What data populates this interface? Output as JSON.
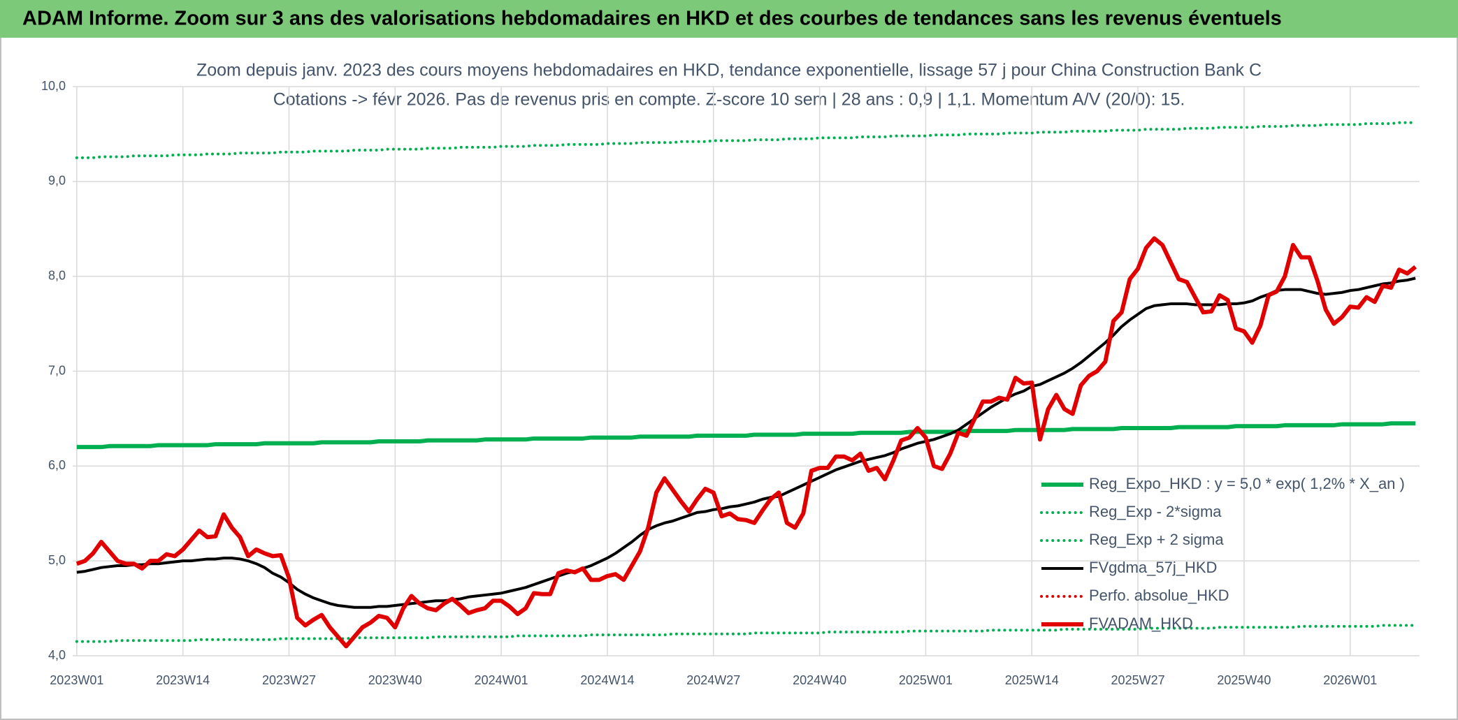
{
  "chart_data": {
    "type": "line",
    "title": "ADAM Informe. Zoom sur 3 ans des valorisations hebdomadaires en HKD et des courbes de tendances sans les revenus éventuels",
    "subtitle": [
      "Zoom depuis janv. 2023 des cours moyens hebdomadaires en HKD, tendance exponentielle, lissage 57 j pour China Construction Bank C",
      "Cotations -> févr 2026. Pas de revenus pris en compte. Z-score 10 sem | 28 ans : 0,9 | 1,1. Momentum A/V (20/0): 15."
    ],
    "categories": [
      "2023W01",
      null,
      null,
      null,
      null,
      null,
      null,
      null,
      null,
      null,
      null,
      null,
      null,
      "2023W14",
      null,
      null,
      null,
      null,
      null,
      null,
      null,
      null,
      null,
      null,
      null,
      null,
      "2023W27",
      null,
      null,
      null,
      null,
      null,
      null,
      null,
      null,
      null,
      null,
      null,
      null,
      "2023W40",
      null,
      null,
      null,
      null,
      null,
      null,
      null,
      null,
      null,
      null,
      null,
      null,
      "2024W01",
      null,
      null,
      null,
      null,
      null,
      null,
      null,
      null,
      null,
      null,
      null,
      null,
      "2024W14",
      null,
      null,
      null,
      null,
      null,
      null,
      null,
      null,
      null,
      null,
      null,
      null,
      "2024W27",
      null,
      null,
      null,
      null,
      null,
      null,
      null,
      null,
      null,
      null,
      null,
      null,
      "2024W40",
      null,
      null,
      null,
      null,
      null,
      null,
      null,
      null,
      null,
      null,
      null,
      null,
      "2025W01",
      null,
      null,
      null,
      null,
      null,
      null,
      null,
      null,
      null,
      null,
      null,
      null,
      "2025W14",
      null,
      null,
      null,
      null,
      null,
      null,
      null,
      null,
      null,
      null,
      null,
      null,
      "2025W27",
      null,
      null,
      null,
      null,
      null,
      null,
      null,
      null,
      null,
      null,
      null,
      null,
      "2025W40",
      null,
      null,
      null,
      null,
      null,
      null,
      null,
      null,
      null,
      null,
      null,
      null,
      "2026W01",
      null,
      null,
      null,
      null,
      null,
      null,
      null,
      null
    ],
    "ylim": [
      4,
      10
    ],
    "yticks": [
      {
        "value": 4,
        "label": "4,0"
      },
      {
        "value": 5,
        "label": "5,0"
      },
      {
        "value": 6,
        "label": "6,0"
      },
      {
        "value": 7,
        "label": "7,0"
      },
      {
        "value": 8,
        "label": "8,0"
      },
      {
        "value": 9,
        "label": "9,0"
      },
      {
        "value": 10,
        "label": "10,0"
      }
    ],
    "grid": true,
    "legend": "lower right",
    "series": [
      {
        "name": "Reg_Expo_HKD : y = 5,0 * exp( 1,2% *  X_an )",
        "color": "#00b050",
        "line_style": "solid-thick",
        "values": [
          6.2,
          6.2,
          6.2,
          6.2,
          6.21,
          6.21,
          6.21,
          6.21,
          6.21,
          6.21,
          6.22,
          6.22,
          6.22,
          6.22,
          6.22,
          6.22,
          6.22,
          6.23,
          6.23,
          6.23,
          6.23,
          6.23,
          6.23,
          6.24,
          6.24,
          6.24,
          6.24,
          6.24,
          6.24,
          6.24,
          6.25,
          6.25,
          6.25,
          6.25,
          6.25,
          6.25,
          6.25,
          6.26,
          6.26,
          6.26,
          6.26,
          6.26,
          6.26,
          6.27,
          6.27,
          6.27,
          6.27,
          6.27,
          6.27,
          6.27,
          6.28,
          6.28,
          6.28,
          6.28,
          6.28,
          6.28,
          6.29,
          6.29,
          6.29,
          6.29,
          6.29,
          6.29,
          6.29,
          6.3,
          6.3,
          6.3,
          6.3,
          6.3,
          6.3,
          6.31,
          6.31,
          6.31,
          6.31,
          6.31,
          6.31,
          6.31,
          6.32,
          6.32,
          6.32,
          6.32,
          6.32,
          6.32,
          6.32,
          6.33,
          6.33,
          6.33,
          6.33,
          6.33,
          6.33,
          6.34,
          6.34,
          6.34,
          6.34,
          6.34,
          6.34,
          6.34,
          6.35,
          6.35,
          6.35,
          6.35,
          6.35,
          6.35,
          6.36,
          6.36,
          6.36,
          6.36,
          6.36,
          6.36,
          6.36,
          6.37,
          6.37,
          6.37,
          6.37,
          6.37,
          6.37,
          6.38,
          6.38,
          6.38,
          6.38,
          6.38,
          6.38,
          6.38,
          6.39,
          6.39,
          6.39,
          6.39,
          6.39,
          6.39,
          6.4,
          6.4,
          6.4,
          6.4,
          6.4,
          6.4,
          6.4,
          6.41,
          6.41,
          6.41,
          6.41,
          6.41,
          6.41,
          6.41,
          6.42,
          6.42,
          6.42,
          6.42,
          6.42,
          6.42,
          6.43,
          6.43,
          6.43,
          6.43,
          6.43,
          6.43,
          6.43,
          6.44,
          6.44,
          6.44,
          6.44,
          6.44,
          6.44,
          6.45,
          6.45,
          6.45,
          6.45
        ]
      },
      {
        "name": "Reg_Exp - 2*sigma",
        "color": "#00b050",
        "line_style": "dotted",
        "values": [
          4.15,
          4.15,
          4.15,
          4.15,
          4.15,
          4.16,
          4.16,
          4.16,
          4.16,
          4.16,
          4.16,
          4.16,
          4.16,
          4.16,
          4.16,
          4.17,
          4.17,
          4.17,
          4.17,
          4.17,
          4.17,
          4.17,
          4.17,
          4.17,
          4.17,
          4.18,
          4.18,
          4.18,
          4.18,
          4.18,
          4.18,
          4.18,
          4.18,
          4.18,
          4.19,
          4.19,
          4.19,
          4.19,
          4.19,
          4.19,
          4.19,
          4.19,
          4.19,
          4.19,
          4.2,
          4.2,
          4.2,
          4.2,
          4.2,
          4.2,
          4.2,
          4.2,
          4.2,
          4.2,
          4.21,
          4.21,
          4.21,
          4.21,
          4.21,
          4.21,
          4.21,
          4.21,
          4.21,
          4.22,
          4.22,
          4.22,
          4.22,
          4.22,
          4.22,
          4.22,
          4.22,
          4.22,
          4.22,
          4.23,
          4.23,
          4.23,
          4.23,
          4.23,
          4.23,
          4.23,
          4.23,
          4.23,
          4.23,
          4.24,
          4.24,
          4.24,
          4.24,
          4.24,
          4.24,
          4.24,
          4.24,
          4.24,
          4.25,
          4.25,
          4.25,
          4.25,
          4.25,
          4.25,
          4.25,
          4.25,
          4.25,
          4.25,
          4.26,
          4.26,
          4.26,
          4.26,
          4.26,
          4.26,
          4.26,
          4.26,
          4.26,
          4.26,
          4.27,
          4.27,
          4.27,
          4.27,
          4.27,
          4.27,
          4.27,
          4.27,
          4.27,
          4.28,
          4.28,
          4.28,
          4.28,
          4.28,
          4.28,
          4.28,
          4.28,
          4.28,
          4.28,
          4.29,
          4.29,
          4.29,
          4.29,
          4.29,
          4.29,
          4.29,
          4.29,
          4.29,
          4.3,
          4.3,
          4.3,
          4.3,
          4.3,
          4.3,
          4.3,
          4.3,
          4.3,
          4.3,
          4.31,
          4.31,
          4.31,
          4.31,
          4.31,
          4.31,
          4.31,
          4.31,
          4.31,
          4.31,
          4.32,
          4.32,
          4.32,
          4.32,
          4.32
        ]
      },
      {
        "name": "Reg_Exp + 2 sigma",
        "color": "#00b050",
        "line_style": "dotted",
        "values": [
          9.25,
          9.25,
          9.25,
          9.26,
          9.26,
          9.26,
          9.26,
          9.27,
          9.27,
          9.27,
          9.27,
          9.27,
          9.28,
          9.28,
          9.28,
          9.28,
          9.29,
          9.29,
          9.29,
          9.29,
          9.3,
          9.3,
          9.3,
          9.3,
          9.3,
          9.31,
          9.31,
          9.31,
          9.31,
          9.32,
          9.32,
          9.32,
          9.32,
          9.32,
          9.33,
          9.33,
          9.33,
          9.33,
          9.34,
          9.34,
          9.34,
          9.34,
          9.34,
          9.35,
          9.35,
          9.35,
          9.35,
          9.36,
          9.36,
          9.36,
          9.36,
          9.36,
          9.37,
          9.37,
          9.37,
          9.37,
          9.38,
          9.38,
          9.38,
          9.38,
          9.39,
          9.39,
          9.39,
          9.39,
          9.39,
          9.4,
          9.4,
          9.4,
          9.4,
          9.41,
          9.41,
          9.41,
          9.41,
          9.41,
          9.42,
          9.42,
          9.42,
          9.42,
          9.43,
          9.43,
          9.43,
          9.43,
          9.43,
          9.44,
          9.44,
          9.44,
          9.44,
          9.45,
          9.45,
          9.45,
          9.45,
          9.46,
          9.46,
          9.46,
          9.46,
          9.46,
          9.47,
          9.47,
          9.47,
          9.47,
          9.48,
          9.48,
          9.48,
          9.48,
          9.48,
          9.49,
          9.49,
          9.49,
          9.49,
          9.5,
          9.5,
          9.5,
          9.5,
          9.5,
          9.51,
          9.51,
          9.51,
          9.51,
          9.52,
          9.52,
          9.52,
          9.52,
          9.53,
          9.53,
          9.53,
          9.53,
          9.53,
          9.54,
          9.54,
          9.54,
          9.54,
          9.55,
          9.55,
          9.55,
          9.55,
          9.55,
          9.56,
          9.56,
          9.56,
          9.56,
          9.57,
          9.57,
          9.57,
          9.57,
          9.57,
          9.58,
          9.58,
          9.58,
          9.58,
          9.59,
          9.59,
          9.59,
          9.59,
          9.6,
          9.6,
          9.6,
          9.6,
          9.6,
          9.61,
          9.61,
          9.61,
          9.61,
          9.62,
          9.62,
          9.62
        ]
      },
      {
        "name": "FVgdma_57j_HKD",
        "color": "#000000",
        "line_style": "solid",
        "values": [
          4.88,
          4.89,
          4.91,
          4.93,
          4.94,
          4.95,
          4.95,
          4.96,
          4.96,
          4.97,
          4.97,
          4.98,
          4.99,
          5.0,
          5.0,
          5.01,
          5.02,
          5.02,
          5.03,
          5.03,
          5.02,
          5.0,
          4.97,
          4.93,
          4.87,
          4.83,
          4.77,
          4.7,
          4.65,
          4.61,
          4.58,
          4.55,
          4.53,
          4.52,
          4.51,
          4.51,
          4.51,
          4.52,
          4.52,
          4.53,
          4.54,
          4.55,
          4.56,
          4.57,
          4.58,
          4.58,
          4.59,
          4.6,
          4.62,
          4.63,
          4.64,
          4.65,
          4.66,
          4.68,
          4.7,
          4.72,
          4.75,
          4.78,
          4.81,
          4.84,
          4.87,
          4.89,
          4.92,
          4.95,
          4.99,
          5.03,
          5.08,
          5.14,
          5.2,
          5.27,
          5.33,
          5.37,
          5.4,
          5.42,
          5.45,
          5.48,
          5.51,
          5.52,
          5.54,
          5.55,
          5.57,
          5.58,
          5.6,
          5.62,
          5.65,
          5.67,
          5.68,
          5.72,
          5.76,
          5.8,
          5.84,
          5.88,
          5.92,
          5.96,
          5.99,
          6.02,
          6.05,
          6.07,
          6.09,
          6.11,
          6.14,
          6.18,
          6.21,
          6.24,
          6.26,
          6.28,
          6.31,
          6.34,
          6.38,
          6.44,
          6.5,
          6.56,
          6.62,
          6.67,
          6.72,
          6.76,
          6.79,
          6.84,
          6.86,
          6.9,
          6.94,
          6.98,
          7.03,
          7.09,
          7.16,
          7.23,
          7.3,
          7.38,
          7.47,
          7.54,
          7.6,
          7.66,
          7.69,
          7.7,
          7.71,
          7.71,
          7.71,
          7.7,
          7.7,
          7.7,
          7.7,
          7.71,
          7.71,
          7.72,
          7.74,
          7.78,
          7.81,
          7.85,
          7.86,
          7.86,
          7.86,
          7.84,
          7.82,
          7.81,
          7.82,
          7.83,
          7.85,
          7.86,
          7.88,
          7.9,
          7.92,
          7.93,
          7.95,
          7.96,
          7.98
        ]
      },
      {
        "name": "Perfo. absolue_HKD",
        "color": "#e00000",
        "line_style": "dotted",
        "values": [
          null,
          null,
          null,
          null,
          null,
          null,
          null,
          null,
          null,
          null,
          null,
          null,
          null,
          null,
          null,
          null,
          null,
          null,
          null,
          null,
          null,
          null,
          null,
          null,
          null,
          null,
          null,
          null,
          null,
          null,
          null,
          null,
          null,
          null,
          null,
          null,
          null,
          null,
          null,
          null,
          null,
          null,
          null,
          null,
          null,
          null,
          null,
          null,
          null,
          null,
          null,
          null,
          null,
          null,
          null,
          null,
          null,
          null,
          null,
          null,
          null,
          null,
          null,
          null,
          null,
          null,
          null,
          null,
          null,
          null,
          null,
          null,
          null,
          null,
          null,
          null,
          null,
          null,
          null,
          null,
          null,
          null,
          null,
          null,
          null,
          null,
          null,
          null,
          null,
          null,
          null,
          null,
          null,
          null,
          null,
          null,
          null,
          null,
          null,
          null,
          null,
          null,
          null,
          null,
          null,
          null,
          null,
          null,
          null,
          null,
          null,
          null,
          null,
          null,
          null,
          null,
          null,
          null,
          null,
          null,
          null,
          null,
          null,
          null,
          null,
          null,
          null,
          null,
          null,
          null,
          null,
          null,
          null,
          null,
          null,
          null,
          null,
          null,
          null,
          null,
          null,
          null,
          null,
          null,
          null,
          null,
          null,
          null,
          null,
          null,
          null,
          null,
          null,
          null,
          null,
          null,
          null,
          null,
          null,
          null,
          null,
          null,
          null,
          null,
          null
        ]
      },
      {
        "name": "FVADAM_HKD",
        "color": "#e00000",
        "line_style": "solid-thick",
        "values": [
          4.97,
          5.0,
          5.08,
          5.2,
          5.1,
          5.0,
          4.97,
          4.97,
          4.92,
          5.0,
          5.0,
          5.07,
          5.05,
          5.12,
          5.22,
          5.32,
          5.25,
          5.26,
          5.49,
          5.35,
          5.25,
          5.05,
          5.12,
          5.08,
          5.05,
          5.06,
          4.82,
          4.4,
          4.32,
          4.38,
          4.43,
          4.3,
          4.2,
          4.1,
          4.2,
          4.3,
          4.35,
          4.42,
          4.4,
          4.3,
          4.5,
          4.63,
          4.55,
          4.5,
          4.48,
          4.55,
          4.6,
          4.53,
          4.45,
          4.48,
          4.5,
          4.58,
          4.58,
          4.52,
          4.44,
          4.5,
          4.66,
          4.65,
          4.65,
          4.87,
          4.9,
          4.88,
          4.92,
          4.8,
          4.8,
          4.84,
          4.86,
          4.8,
          4.95,
          5.1,
          5.35,
          5.72,
          5.87,
          5.75,
          5.63,
          5.52,
          5.65,
          5.76,
          5.72,
          5.47,
          5.5,
          5.44,
          5.43,
          5.4,
          5.53,
          5.65,
          5.72,
          5.4,
          5.35,
          5.5,
          5.95,
          5.98,
          5.98,
          6.1,
          6.1,
          6.06,
          6.13,
          5.95,
          5.98,
          5.86,
          6.05,
          6.27,
          6.3,
          6.4,
          6.3,
          6.0,
          5.97,
          6.13,
          6.35,
          6.32,
          6.5,
          6.68,
          6.68,
          6.72,
          6.7,
          6.93,
          6.87,
          6.88,
          6.28,
          6.6,
          6.75,
          6.6,
          6.55,
          6.85,
          6.95,
          7.0,
          7.1,
          7.53,
          7.62,
          7.97,
          8.08,
          8.3,
          8.4,
          8.33,
          8.15,
          7.97,
          7.94,
          7.78,
          7.62,
          7.63,
          7.8,
          7.75,
          7.45,
          7.42,
          7.3,
          7.48,
          7.8,
          7.84,
          8.0,
          8.33,
          8.2,
          8.2,
          7.95,
          7.65,
          7.5,
          7.57,
          7.68,
          7.67,
          7.78,
          7.73,
          7.9,
          7.88,
          8.07,
          8.03,
          8.1
        ]
      }
    ]
  }
}
